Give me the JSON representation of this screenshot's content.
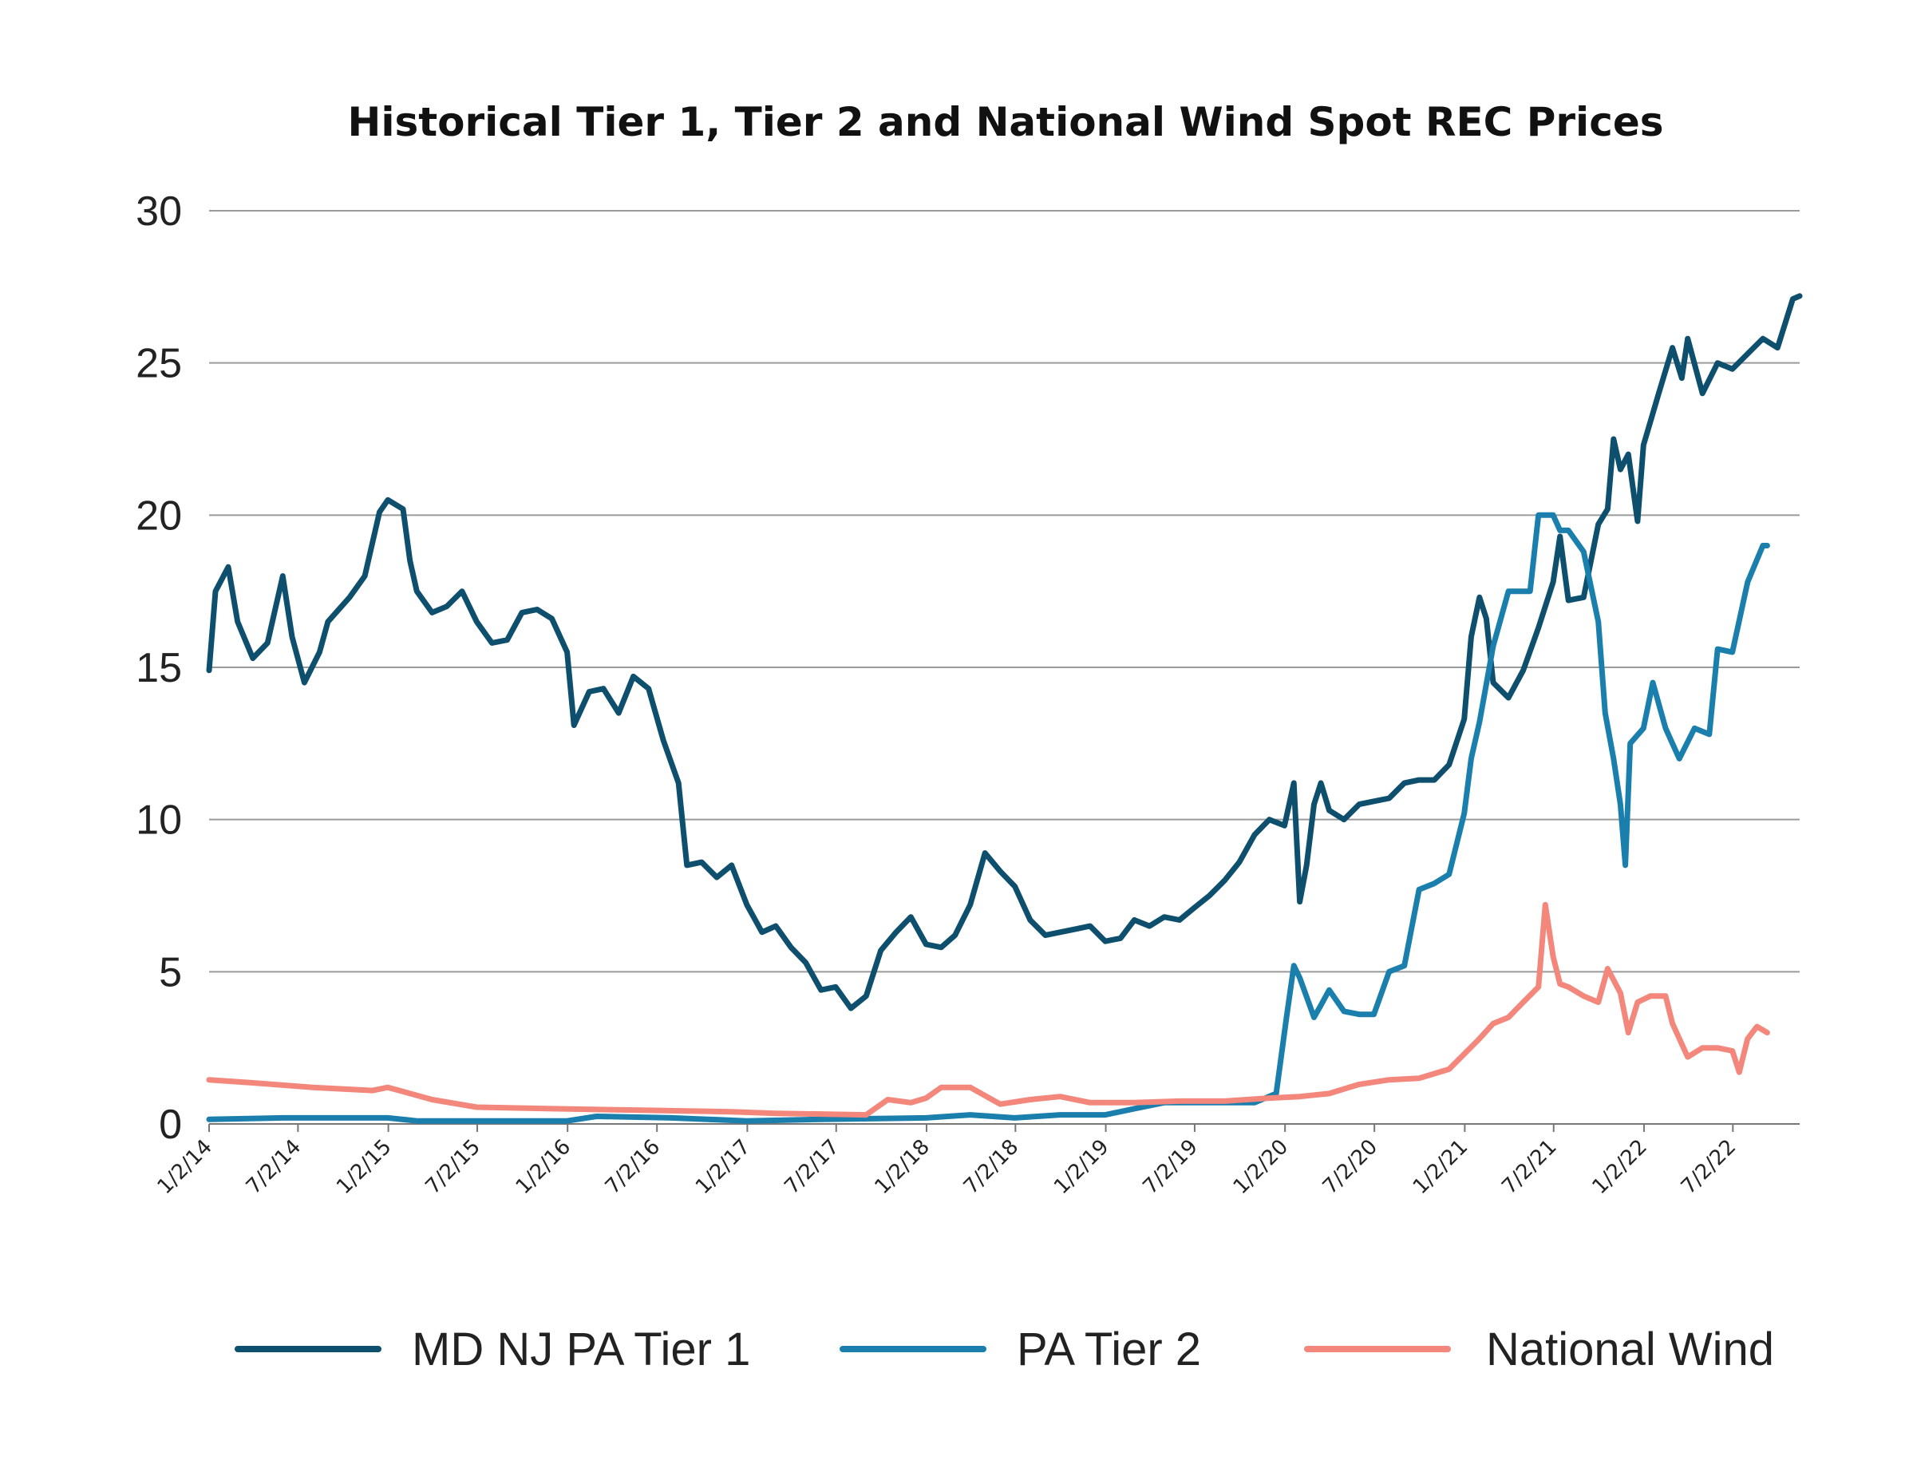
{
  "chart_data": {
    "type": "line",
    "title": "Historical Tier 1, Tier 2 and National Wind Spot REC Prices",
    "xlabel": "",
    "ylabel": "",
    "ylim": [
      0,
      30
    ],
    "yticks": [
      "0",
      "5",
      "10",
      "15",
      "20",
      "25",
      "30"
    ],
    "x_tick_labels": [
      "1/2/14",
      "7/2/14",
      "1/2/15",
      "7/2/15",
      "1/2/16",
      "7/2/16",
      "1/2/17",
      "7/2/17",
      "1/2/18",
      "7/2/18",
      "1/2/19",
      "7/2/19",
      "1/2/20",
      "7/2/20",
      "1/2/21",
      "7/2/21",
      "1/2/22",
      "7/2/22"
    ],
    "grid": true,
    "legend_position": "bottom",
    "series": [
      {
        "name": "MD NJ PA Tier 1",
        "color": "#0e4f6e",
        "points": [
          [
            "2014-01-02",
            14.9
          ],
          [
            "2014-01-15",
            17.5
          ],
          [
            "2014-02-10",
            18.3
          ],
          [
            "2014-03-01",
            16.5
          ],
          [
            "2014-04-01",
            15.3
          ],
          [
            "2014-05-01",
            15.8
          ],
          [
            "2014-06-01",
            18
          ],
          [
            "2014-06-20",
            16
          ],
          [
            "2014-07-15",
            14.5
          ],
          [
            "2014-08-15",
            15.5
          ],
          [
            "2014-09-01",
            16.5
          ],
          [
            "2014-10-15",
            17.3
          ],
          [
            "2014-11-15",
            18
          ],
          [
            "2014-12-15",
            20.1
          ],
          [
            "2015-01-01",
            20.5
          ],
          [
            "2015-02-01",
            20.2
          ],
          [
            "2015-02-15",
            18.5
          ],
          [
            "2015-03-01",
            17.5
          ],
          [
            "2015-04-01",
            16.8
          ],
          [
            "2015-05-01",
            17
          ],
          [
            "2015-06-01",
            17.5
          ],
          [
            "2015-07-01",
            16.5
          ],
          [
            "2015-08-01",
            15.8
          ],
          [
            "2015-09-01",
            15.9
          ],
          [
            "2015-10-01",
            16.8
          ],
          [
            "2015-11-01",
            16.9
          ],
          [
            "2015-12-01",
            16.6
          ],
          [
            "2016-01-01",
            15.5
          ],
          [
            "2016-01-15",
            13.1
          ],
          [
            "2016-02-15",
            14.2
          ],
          [
            "2016-03-15",
            14.3
          ],
          [
            "2016-04-15",
            13.5
          ],
          [
            "2016-05-15",
            14.7
          ],
          [
            "2016-06-15",
            14.3
          ],
          [
            "2016-07-15",
            12.6
          ],
          [
            "2016-08-15",
            11.2
          ],
          [
            "2016-09-01",
            8.5
          ],
          [
            "2016-10-01",
            8.6
          ],
          [
            "2016-11-01",
            8.1
          ],
          [
            "2016-12-01",
            8.5
          ],
          [
            "2017-01-01",
            7.2
          ],
          [
            "2017-02-01",
            6.3
          ],
          [
            "2017-03-01",
            6.5
          ],
          [
            "2017-04-01",
            5.8
          ],
          [
            "2017-05-01",
            5.3
          ],
          [
            "2017-06-01",
            4.4
          ],
          [
            "2017-07-01",
            4.5
          ],
          [
            "2017-08-01",
            3.8
          ],
          [
            "2017-09-01",
            4.2
          ],
          [
            "2017-10-01",
            5.7
          ],
          [
            "2017-11-01",
            6.3
          ],
          [
            "2017-12-01",
            6.8
          ],
          [
            "2018-01-01",
            5.9
          ],
          [
            "2018-02-01",
            5.8
          ],
          [
            "2018-03-01",
            6.2
          ],
          [
            "2018-04-01",
            7.2
          ],
          [
            "2018-05-01",
            8.9
          ],
          [
            "2018-06-01",
            8.3
          ],
          [
            "2018-07-01",
            7.8
          ],
          [
            "2018-08-01",
            6.7
          ],
          [
            "2018-09-01",
            6.2
          ],
          [
            "2018-10-01",
            6.3
          ],
          [
            "2018-11-01",
            6.4
          ],
          [
            "2018-12-01",
            6.5
          ],
          [
            "2019-01-01",
            6
          ],
          [
            "2019-02-01",
            6.1
          ],
          [
            "2019-03-01",
            6.7
          ],
          [
            "2019-04-01",
            6.5
          ],
          [
            "2019-05-01",
            6.8
          ],
          [
            "2019-06-01",
            6.7
          ],
          [
            "2019-07-01",
            7.1
          ],
          [
            "2019-08-01",
            7.5
          ],
          [
            "2019-09-01",
            8
          ],
          [
            "2019-10-01",
            8.6
          ],
          [
            "2019-11-01",
            9.5
          ],
          [
            "2019-12-01",
            10
          ],
          [
            "2020-01-01",
            9.8
          ],
          [
            "2020-01-20",
            11.2
          ],
          [
            "2020-02-01",
            7.3
          ],
          [
            "2020-02-15",
            8.5
          ],
          [
            "2020-03-01",
            10.5
          ],
          [
            "2020-03-15",
            11.2
          ],
          [
            "2020-04-01",
            10.3
          ],
          [
            "2020-05-01",
            10
          ],
          [
            "2020-06-01",
            10.5
          ],
          [
            "2020-07-01",
            10.6
          ],
          [
            "2020-08-01",
            10.7
          ],
          [
            "2020-09-01",
            11.2
          ],
          [
            "2020-10-01",
            11.3
          ],
          [
            "2020-11-01",
            11.3
          ],
          [
            "2020-12-01",
            11.8
          ],
          [
            "2021-01-01",
            13.3
          ],
          [
            "2021-01-15",
            16
          ],
          [
            "2021-02-01",
            17.3
          ],
          [
            "2021-02-15",
            16.6
          ],
          [
            "2021-03-01",
            14.5
          ],
          [
            "2021-04-01",
            14
          ],
          [
            "2021-05-01",
            14.9
          ],
          [
            "2021-06-01",
            16.3
          ],
          [
            "2021-07-01",
            17.8
          ],
          [
            "2021-07-15",
            19.3
          ],
          [
            "2021-08-01",
            17.2
          ],
          [
            "2021-09-01",
            17.3
          ],
          [
            "2021-10-01",
            19.7
          ],
          [
            "2021-10-20",
            20.2
          ],
          [
            "2021-11-01",
            22.5
          ],
          [
            "2021-11-15",
            21.5
          ],
          [
            "2021-12-01",
            22
          ],
          [
            "2021-12-20",
            19.8
          ],
          [
            "2022-01-01",
            22.3
          ],
          [
            "2022-02-01",
            24
          ],
          [
            "2022-03-01",
            25.5
          ],
          [
            "2022-03-20",
            24.5
          ],
          [
            "2022-04-01",
            25.8
          ],
          [
            "2022-05-01",
            24
          ],
          [
            "2022-06-01",
            25
          ],
          [
            "2022-07-01",
            24.8
          ],
          [
            "2022-08-01",
            25.3
          ],
          [
            "2022-09-01",
            25.8
          ],
          [
            "2022-10-01",
            25.5
          ],
          [
            "2022-11-01",
            27.1
          ],
          [
            "2022-11-15",
            27.2
          ]
        ]
      },
      {
        "name": "PA Tier 2",
        "color": "#1a7fad",
        "points": [
          [
            "2014-01-02",
            0.15
          ],
          [
            "2014-06-01",
            0.2
          ],
          [
            "2015-01-01",
            0.2
          ],
          [
            "2015-03-01",
            0.1
          ],
          [
            "2016-01-01",
            0.1
          ],
          [
            "2016-03-01",
            0.25
          ],
          [
            "2016-08-01",
            0.2
          ],
          [
            "2017-01-01",
            0.1
          ],
          [
            "2017-06-01",
            0.15
          ],
          [
            "2018-01-01",
            0.2
          ],
          [
            "2018-04-01",
            0.3
          ],
          [
            "2018-07-01",
            0.2
          ],
          [
            "2018-10-01",
            0.3
          ],
          [
            "2019-01-01",
            0.3
          ],
          [
            "2019-03-01",
            0.5
          ],
          [
            "2019-05-01",
            0.7
          ],
          [
            "2019-08-01",
            0.7
          ],
          [
            "2019-11-01",
            0.7
          ],
          [
            "2019-12-15",
            1
          ],
          [
            "2020-01-05",
            3.5
          ],
          [
            "2020-01-20",
            5.2
          ],
          [
            "2020-02-01",
            4.8
          ],
          [
            "2020-03-01",
            3.5
          ],
          [
            "2020-03-15",
            3.9
          ],
          [
            "2020-04-01",
            4.4
          ],
          [
            "2020-05-01",
            3.7
          ],
          [
            "2020-06-01",
            3.6
          ],
          [
            "2020-07-01",
            3.6
          ],
          [
            "2020-08-01",
            5
          ],
          [
            "2020-09-01",
            5.2
          ],
          [
            "2020-10-01",
            7.7
          ],
          [
            "2020-11-01",
            7.9
          ],
          [
            "2020-12-01",
            8.2
          ],
          [
            "2021-01-01",
            10.2
          ],
          [
            "2021-01-15",
            12
          ],
          [
            "2021-02-01",
            13.2
          ],
          [
            "2021-03-01",
            15.7
          ],
          [
            "2021-04-01",
            17.5
          ],
          [
            "2021-05-15",
            17.5
          ],
          [
            "2021-06-01",
            20
          ],
          [
            "2021-07-01",
            20
          ],
          [
            "2021-07-15",
            19.5
          ],
          [
            "2021-08-01",
            19.5
          ],
          [
            "2021-09-01",
            18.8
          ],
          [
            "2021-10-01",
            16.5
          ],
          [
            "2021-10-15",
            13.5
          ],
          [
            "2021-11-01",
            12
          ],
          [
            "2021-11-15",
            10.5
          ],
          [
            "2021-11-25",
            8.5
          ],
          [
            "2021-12-05",
            12.5
          ],
          [
            "2022-01-01",
            13
          ],
          [
            "2022-01-20",
            14.5
          ],
          [
            "2022-02-15",
            13
          ],
          [
            "2022-03-15",
            12
          ],
          [
            "2022-04-15",
            13
          ],
          [
            "2022-05-15",
            12.8
          ],
          [
            "2022-06-01",
            15.6
          ],
          [
            "2022-07-01",
            15.5
          ],
          [
            "2022-08-01",
            17.8
          ],
          [
            "2022-09-01",
            19
          ],
          [
            "2022-09-10",
            19
          ]
        ]
      },
      {
        "name": "National Wind",
        "color": "#f3877c",
        "points": [
          [
            "2014-01-02",
            1.45
          ],
          [
            "2014-04-01",
            1.35
          ],
          [
            "2014-08-01",
            1.2
          ],
          [
            "2014-12-01",
            1.1
          ],
          [
            "2015-01-01",
            1.2
          ],
          [
            "2015-04-01",
            0.8
          ],
          [
            "2015-07-01",
            0.55
          ],
          [
            "2015-12-01",
            0.5
          ],
          [
            "2016-06-01",
            0.45
          ],
          [
            "2016-12-01",
            0.4
          ],
          [
            "2017-03-01",
            0.35
          ],
          [
            "2017-09-01",
            0.3
          ],
          [
            "2017-10-15",
            0.8
          ],
          [
            "2017-12-01",
            0.7
          ],
          [
            "2018-01-01",
            0.85
          ],
          [
            "2018-02-01",
            1.2
          ],
          [
            "2018-04-01",
            1.2
          ],
          [
            "2018-06-01",
            0.65
          ],
          [
            "2018-08-01",
            0.8
          ],
          [
            "2018-10-01",
            0.9
          ],
          [
            "2018-12-01",
            0.7
          ],
          [
            "2019-03-01",
            0.7
          ],
          [
            "2019-06-01",
            0.75
          ],
          [
            "2019-09-01",
            0.75
          ],
          [
            "2019-12-01",
            0.85
          ],
          [
            "2020-02-01",
            0.9
          ],
          [
            "2020-04-01",
            1
          ],
          [
            "2020-06-01",
            1.3
          ],
          [
            "2020-08-01",
            1.45
          ],
          [
            "2020-10-01",
            1.5
          ],
          [
            "2020-12-01",
            1.8
          ],
          [
            "2021-02-01",
            2.8
          ],
          [
            "2021-03-01",
            3.3
          ],
          [
            "2021-04-01",
            3.5
          ],
          [
            "2021-05-01",
            4
          ],
          [
            "2021-06-01",
            4.5
          ],
          [
            "2021-06-15",
            7.2
          ],
          [
            "2021-07-01",
            5.5
          ],
          [
            "2021-07-15",
            4.6
          ],
          [
            "2021-08-01",
            4.5
          ],
          [
            "2021-09-01",
            4.2
          ],
          [
            "2021-10-01",
            4
          ],
          [
            "2021-10-20",
            5.1
          ],
          [
            "2021-11-15",
            4.3
          ],
          [
            "2021-12-01",
            3
          ],
          [
            "2021-12-20",
            4
          ],
          [
            "2022-01-15",
            4.2
          ],
          [
            "2022-02-15",
            4.2
          ],
          [
            "2022-03-01",
            3.3
          ],
          [
            "2022-04-01",
            2.2
          ],
          [
            "2022-05-01",
            2.5
          ],
          [
            "2022-06-01",
            2.5
          ],
          [
            "2022-07-01",
            2.4
          ],
          [
            "2022-07-15",
            1.7
          ],
          [
            "2022-08-01",
            2.8
          ],
          [
            "2022-08-20",
            3.2
          ],
          [
            "2022-09-10",
            3
          ]
        ]
      }
    ]
  }
}
